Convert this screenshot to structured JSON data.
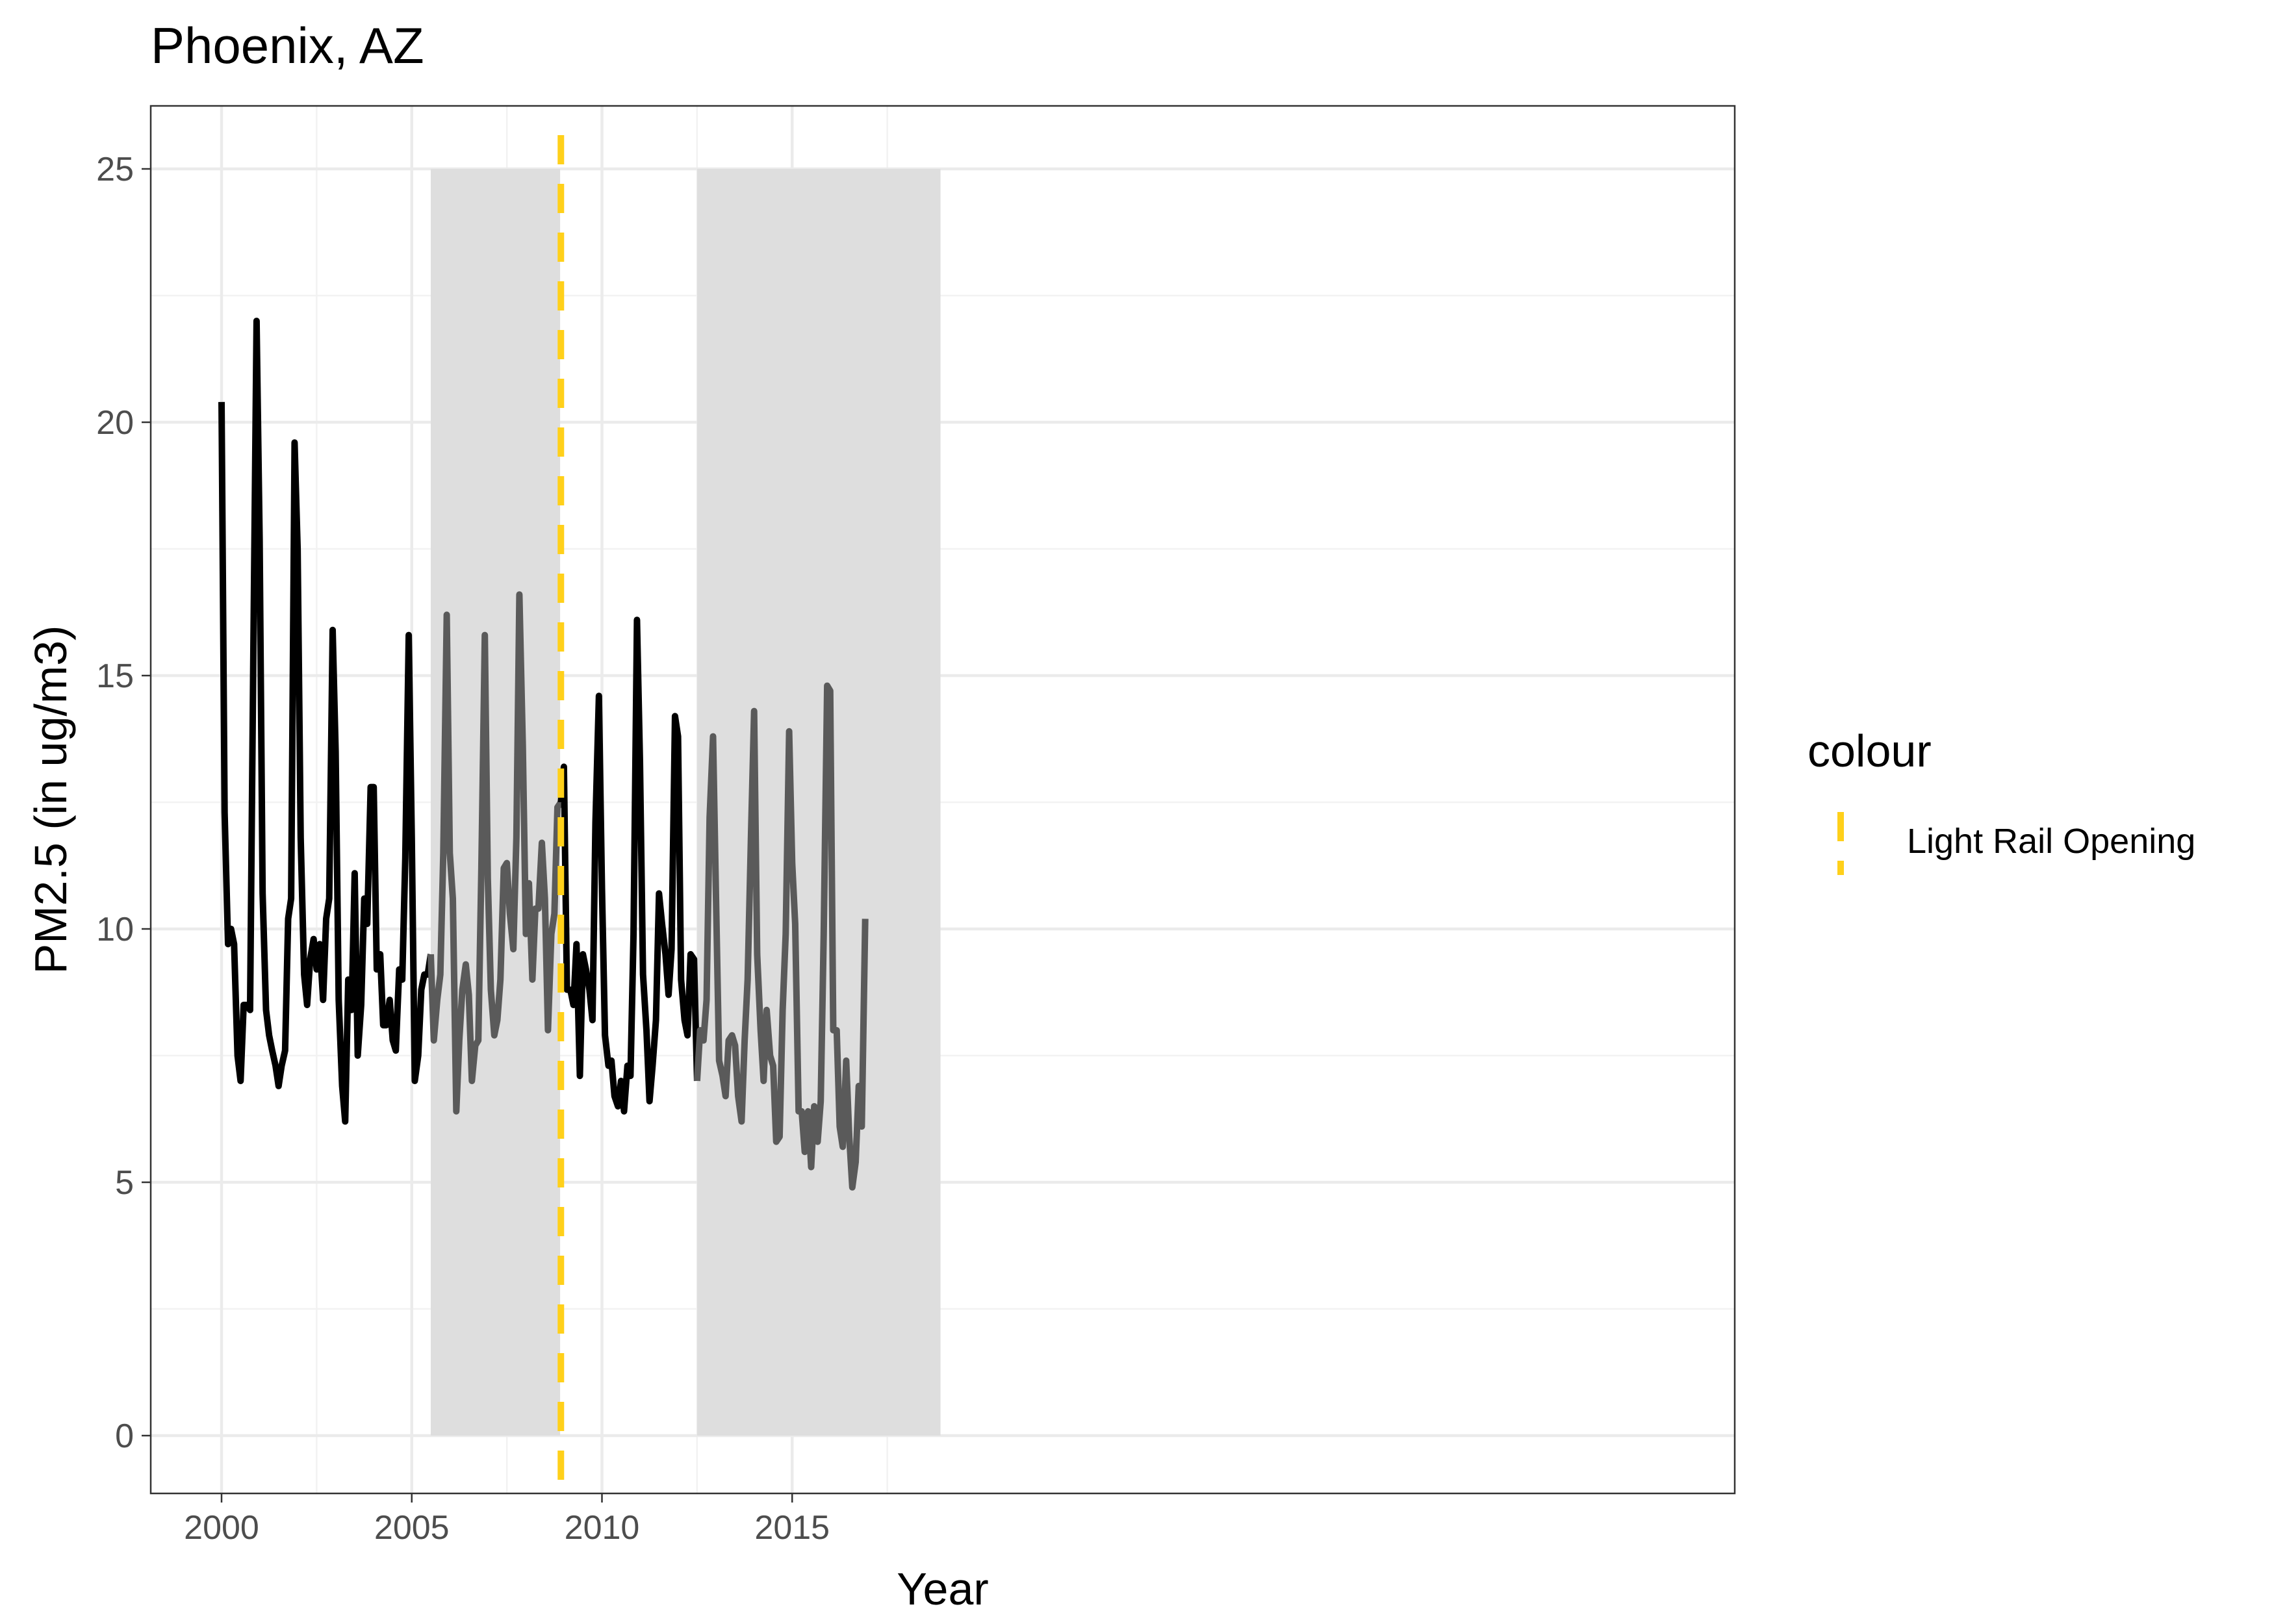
{
  "chart_data": {
    "type": "line",
    "title": "Phoenix, AZ",
    "xlabel": "Year",
    "ylabel": "PM2.5 (in ug/m3)",
    "xlim": [
      2000.0,
      2019.0
    ],
    "ylim": [
      0,
      25
    ],
    "x_ticks": [
      2000,
      2005,
      2010,
      2015
    ],
    "x_tick_labels": [
      "2000",
      "2005",
      "2010",
      "2015"
    ],
    "y_ticks": [
      0,
      5,
      10,
      15,
      20,
      25
    ],
    "y_tick_labels": [
      "0",
      "5",
      "10",
      "15",
      "20",
      "25"
    ],
    "grid": true,
    "legend": {
      "title": "colour",
      "position": "right",
      "items": [
        {
          "label": "Light Rail Opening",
          "color": "#ffd01a",
          "style": "dashed"
        }
      ]
    },
    "shaded_regions": [
      {
        "x_start": 2005.5,
        "x_end": 2008.9,
        "y_start": 0,
        "y_end": 25,
        "color": "#dedede"
      },
      {
        "x_start": 2012.5,
        "x_end": 2018.9,
        "y_start": 0,
        "y_end": 25,
        "color": "#dedede"
      }
    ],
    "vertical_lines": [
      {
        "x": 2008.92,
        "label": "Light Rail Opening",
        "color": "#ffd01a",
        "style": "dashed"
      }
    ],
    "series": [
      {
        "color": "#000000",
        "points": [
          [
            2000.0,
            20.4
          ],
          [
            2000.08,
            12.3
          ],
          [
            2000.17,
            9.7
          ],
          [
            2000.25,
            10.0
          ],
          [
            2000.33,
            9.7
          ],
          [
            2000.42,
            7.5
          ],
          [
            2000.5,
            7.0
          ],
          [
            2000.58,
            8.5
          ],
          [
            2000.67,
            8.5
          ],
          [
            2000.75,
            8.4
          ],
          [
            2000.83,
            15.0
          ],
          [
            2000.92,
            22.0
          ],
          [
            2001.0,
            17.7
          ],
          [
            2001.08,
            10.7
          ],
          [
            2001.17,
            8.4
          ],
          [
            2001.25,
            7.9
          ],
          [
            2001.33,
            7.6
          ],
          [
            2001.42,
            7.3
          ],
          [
            2001.5,
            6.9
          ],
          [
            2001.58,
            7.3
          ],
          [
            2001.67,
            7.6
          ],
          [
            2001.75,
            10.2
          ],
          [
            2001.83,
            10.6
          ],
          [
            2001.92,
            19.6
          ],
          [
            2002.0,
            17.5
          ],
          [
            2002.08,
            11.8
          ],
          [
            2002.17,
            9.1
          ],
          [
            2002.25,
            8.5
          ],
          [
            2002.33,
            9.4
          ],
          [
            2002.42,
            9.8
          ],
          [
            2002.5,
            9.2
          ],
          [
            2002.58,
            9.7
          ],
          [
            2002.67,
            8.6
          ],
          [
            2002.75,
            10.2
          ],
          [
            2002.83,
            10.6
          ],
          [
            2002.92,
            15.9
          ],
          [
            2003.0,
            13.5
          ],
          [
            2003.08,
            8.6
          ],
          [
            2003.17,
            6.9
          ],
          [
            2003.25,
            6.2
          ],
          [
            2003.33,
            9.0
          ],
          [
            2003.42,
            8.4
          ],
          [
            2003.5,
            11.1
          ],
          [
            2003.58,
            7.5
          ],
          [
            2003.67,
            8.5
          ],
          [
            2003.75,
            10.6
          ],
          [
            2003.83,
            10.1
          ],
          [
            2003.92,
            12.8
          ],
          [
            2004.0,
            12.8
          ],
          [
            2004.08,
            9.2
          ],
          [
            2004.17,
            9.5
          ],
          [
            2004.25,
            8.1
          ],
          [
            2004.33,
            8.1
          ],
          [
            2004.42,
            8.6
          ],
          [
            2004.5,
            7.8
          ],
          [
            2004.58,
            7.6
          ],
          [
            2004.67,
            9.2
          ],
          [
            2004.75,
            9.0
          ],
          [
            2004.83,
            11.4
          ],
          [
            2004.92,
            15.8
          ],
          [
            2005.0,
            11.8
          ],
          [
            2005.08,
            7.0
          ],
          [
            2005.17,
            7.5
          ],
          [
            2005.25,
            8.8
          ],
          [
            2005.33,
            9.1
          ],
          [
            2005.42,
            9.1
          ],
          [
            2005.5,
            9.5
          ]
        ]
      },
      {
        "color": "#5a5a5a",
        "points": [
          [
            2005.5,
            9.5
          ],
          [
            2005.58,
            7.8
          ],
          [
            2005.67,
            8.6
          ],
          [
            2005.75,
            9.1
          ],
          [
            2005.83,
            11.5
          ],
          [
            2005.92,
            16.2
          ],
          [
            2006.0,
            11.5
          ],
          [
            2006.08,
            10.6
          ],
          [
            2006.17,
            6.4
          ],
          [
            2006.25,
            7.8
          ],
          [
            2006.33,
            8.8
          ],
          [
            2006.42,
            9.3
          ],
          [
            2006.5,
            8.7
          ],
          [
            2006.58,
            7.0
          ],
          [
            2006.67,
            7.7
          ],
          [
            2006.75,
            7.8
          ],
          [
            2006.83,
            11.2
          ],
          [
            2006.92,
            15.8
          ],
          [
            2007.0,
            11.0
          ],
          [
            2007.08,
            8.8
          ],
          [
            2007.17,
            7.9
          ],
          [
            2007.25,
            8.2
          ],
          [
            2007.33,
            9.0
          ],
          [
            2007.42,
            11.2
          ],
          [
            2007.5,
            11.3
          ],
          [
            2007.58,
            10.3
          ],
          [
            2007.67,
            9.6
          ],
          [
            2007.75,
            11.8
          ],
          [
            2007.83,
            16.6
          ],
          [
            2007.92,
            13.6
          ],
          [
            2008.0,
            9.9
          ],
          [
            2008.08,
            10.9
          ],
          [
            2008.17,
            9.0
          ],
          [
            2008.25,
            10.4
          ],
          [
            2008.33,
            10.4
          ],
          [
            2008.42,
            11.7
          ],
          [
            2008.5,
            10.6
          ],
          [
            2008.58,
            8.0
          ],
          [
            2008.67,
            9.9
          ],
          [
            2008.75,
            10.3
          ],
          [
            2008.83,
            12.4
          ],
          [
            2008.92,
            12.5
          ]
        ]
      },
      {
        "color": "#000000",
        "points": [
          [
            2008.92,
            12.5
          ],
          [
            2009.0,
            13.2
          ],
          [
            2009.08,
            8.8
          ],
          [
            2009.17,
            8.8
          ],
          [
            2009.25,
            8.5
          ],
          [
            2009.33,
            9.7
          ],
          [
            2009.42,
            7.1
          ],
          [
            2009.5,
            9.5
          ],
          [
            2009.58,
            9.2
          ],
          [
            2009.67,
            8.8
          ],
          [
            2009.75,
            8.2
          ],
          [
            2009.83,
            12.1
          ],
          [
            2009.92,
            14.6
          ],
          [
            2010.0,
            10.8
          ],
          [
            2010.08,
            7.9
          ],
          [
            2010.17,
            7.3
          ],
          [
            2010.25,
            7.4
          ],
          [
            2010.33,
            6.7
          ],
          [
            2010.42,
            6.5
          ],
          [
            2010.5,
            7.0
          ],
          [
            2010.58,
            6.4
          ],
          [
            2010.67,
            7.3
          ],
          [
            2010.75,
            7.1
          ],
          [
            2010.83,
            9.9
          ],
          [
            2010.92,
            16.1
          ],
          [
            2011.0,
            13.3
          ],
          [
            2011.08,
            9.1
          ],
          [
            2011.17,
            8.0
          ],
          [
            2011.25,
            6.6
          ],
          [
            2011.33,
            7.3
          ],
          [
            2011.42,
            8.2
          ],
          [
            2011.5,
            10.7
          ],
          [
            2011.58,
            10.1
          ],
          [
            2011.67,
            9.5
          ],
          [
            2011.75,
            8.7
          ],
          [
            2011.83,
            9.6
          ],
          [
            2011.92,
            14.2
          ],
          [
            2012.0,
            13.8
          ],
          [
            2012.08,
            9.0
          ],
          [
            2012.17,
            8.2
          ],
          [
            2012.25,
            7.9
          ],
          [
            2012.33,
            9.5
          ],
          [
            2012.42,
            9.4
          ],
          [
            2012.5,
            7.0
          ]
        ]
      },
      {
        "color": "#5a5a5a",
        "points": [
          [
            2012.5,
            7.0
          ],
          [
            2012.58,
            8.0
          ],
          [
            2012.67,
            7.8
          ],
          [
            2012.75,
            8.6
          ],
          [
            2012.83,
            12.2
          ],
          [
            2012.92,
            13.8
          ],
          [
            2013.0,
            10.5
          ],
          [
            2013.08,
            7.4
          ],
          [
            2013.17,
            7.1
          ],
          [
            2013.25,
            6.7
          ],
          [
            2013.33,
            7.8
          ],
          [
            2013.42,
            7.9
          ],
          [
            2013.5,
            7.7
          ],
          [
            2013.58,
            6.7
          ],
          [
            2013.67,
            6.2
          ],
          [
            2013.75,
            7.8
          ],
          [
            2013.83,
            9.0
          ],
          [
            2013.92,
            11.9
          ],
          [
            2014.0,
            14.3
          ],
          [
            2014.08,
            9.5
          ],
          [
            2014.17,
            8.0
          ],
          [
            2014.25,
            7.0
          ],
          [
            2014.33,
            8.4
          ],
          [
            2014.42,
            7.5
          ],
          [
            2014.5,
            7.3
          ],
          [
            2014.58,
            5.8
          ],
          [
            2014.67,
            5.9
          ],
          [
            2014.75,
            8.4
          ],
          [
            2014.83,
            9.9
          ],
          [
            2014.92,
            13.9
          ],
          [
            2015.0,
            11.3
          ],
          [
            2015.08,
            10.1
          ],
          [
            2015.17,
            6.4
          ],
          [
            2015.25,
            6.4
          ],
          [
            2015.33,
            5.6
          ],
          [
            2015.42,
            6.4
          ],
          [
            2015.5,
            5.3
          ],
          [
            2015.58,
            6.5
          ],
          [
            2015.67,
            5.8
          ],
          [
            2015.75,
            6.6
          ],
          [
            2015.83,
            9.9
          ],
          [
            2015.92,
            14.8
          ],
          [
            2016.0,
            14.7
          ],
          [
            2016.08,
            8.0
          ],
          [
            2016.17,
            8.0
          ],
          [
            2016.25,
            6.1
          ],
          [
            2016.33,
            5.7
          ],
          [
            2016.42,
            7.4
          ],
          [
            2016.5,
            5.9
          ],
          [
            2016.58,
            4.9
          ],
          [
            2016.67,
            5.4
          ],
          [
            2016.75,
            6.9
          ],
          [
            2016.83,
            6.1
          ],
          [
            2016.92,
            10.2
          ]
        ]
      }
    ]
  }
}
